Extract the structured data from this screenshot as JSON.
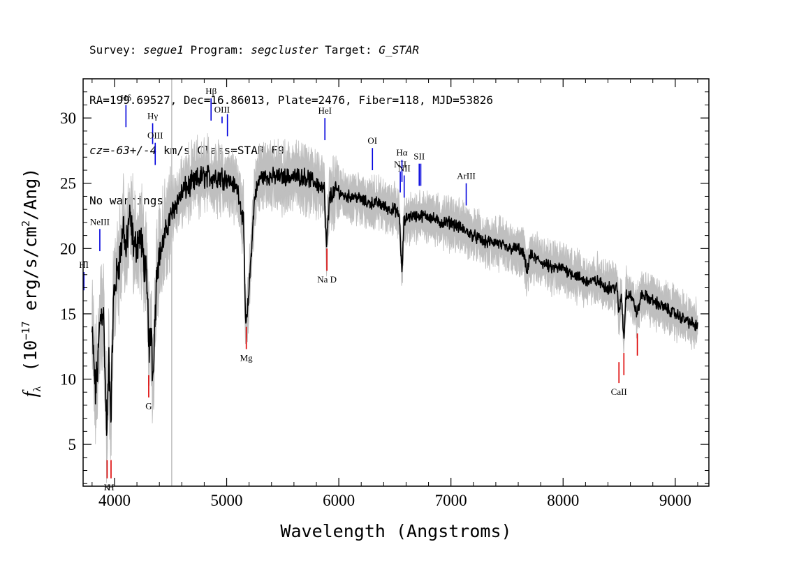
{
  "header": {
    "line1": {
      "survey_label": "Survey: ",
      "survey": "segue1",
      "program_label": " Program: ",
      "program": "segcluster",
      "target_label": " Target: ",
      "target": "G_STAR"
    },
    "line2": "RA=199.69527, Dec=16.86013, Plate=2476, Fiber=118, MJD=53826",
    "line3": {
      "cz": "cz=-63+/-4",
      "rest": " km/s Class=STAR F9"
    },
    "line4": "No warnings."
  },
  "colors": {
    "flux": "#000000",
    "error_band": "#bfbfbf",
    "emission_marker": "#0000dd",
    "absorption_marker": "#dd0000",
    "marker_vertical": "#bfbfbf"
  },
  "chart_data": {
    "type": "line",
    "xlabel": "Wavelength (Angstroms)",
    "ylabel": "f_λ (10^-17 erg/s/cm^2/Ang)",
    "xlim": [
      3720,
      9300
    ],
    "ylim": [
      1.8,
      33
    ],
    "x_ticks": [
      4000,
      5000,
      6000,
      7000,
      8000,
      9000
    ],
    "y_ticks": [
      5,
      10,
      15,
      20,
      25,
      30
    ],
    "marker_wavelength": 4510,
    "series": [
      {
        "x": [
          3800,
          3830,
          3850,
          3870,
          3900,
          3920,
          3933,
          3950,
          3968,
          3990,
          4020,
          4060,
          4080,
          4102,
          4130,
          4180,
          4230,
          4280,
          4300,
          4310,
          4330,
          4340,
          4380,
          4420,
          4480,
          4550,
          4620,
          4700,
          4780,
          4860,
          4920,
          4980,
          5050,
          5100,
          5150,
          5170,
          5185,
          5200,
          5250,
          5300,
          5400,
          5500,
          5600,
          5700,
          5800,
          5870,
          5890,
          5896,
          5920,
          5980,
          6050,
          6150,
          6250,
          6350,
          6450,
          6500,
          6540,
          6563,
          6580,
          6620,
          6700,
          6800,
          6900,
          7000,
          7100,
          7200,
          7300,
          7400,
          7500,
          7600,
          7650,
          7680,
          7700,
          7800,
          7900,
          8000,
          8100,
          8200,
          8300,
          8400,
          8480,
          8498,
          8520,
          8542,
          8560,
          8600,
          8662,
          8700,
          8800,
          8900,
          9000,
          9100,
          9200
        ],
        "y": [
          13.5,
          9,
          11,
          14.5,
          15.5,
          9,
          5.5,
          12,
          7,
          16,
          18,
          20,
          22,
          19.5,
          22.5,
          20,
          21,
          18,
          15,
          12,
          14,
          10,
          19,
          20,
          22,
          23.5,
          24.5,
          25,
          25.5,
          25.5,
          25.5,
          25.5,
          25,
          24.5,
          22,
          14,
          15,
          17,
          24,
          25.5,
          25.5,
          25.5,
          25.5,
          25.5,
          25,
          24.5,
          20,
          21,
          24,
          24.5,
          24,
          24,
          23.5,
          23.5,
          23,
          23,
          22.5,
          18,
          22,
          22.5,
          22.5,
          22.5,
          22,
          22,
          21.5,
          21,
          20.5,
          20.5,
          20,
          20,
          19.5,
          18,
          19.5,
          19,
          18.5,
          18.5,
          18,
          17.5,
          17.5,
          17,
          17,
          15,
          16.5,
          13,
          16.5,
          16.5,
          15,
          16.5,
          16,
          15.5,
          15,
          14.5,
          14
        ]
      }
    ],
    "emission_lines": [
      {
        "label": "HI",
        "wavelength": 3727,
        "y_top": 18.2,
        "y_bottom": 16.8
      },
      {
        "label": "NeIII",
        "wavelength": 3869,
        "y_top": 21.5,
        "y_bottom": 19.8
      },
      {
        "label": "Hδ",
        "wavelength": 4102,
        "y_top": 31.0,
        "y_bottom": 29.3
      },
      {
        "label": "Hγ",
        "wavelength": 4340,
        "y_top": 29.6,
        "y_bottom": 28.0
      },
      {
        "label": "OIII",
        "wavelength": 4363,
        "y_top": 28.1,
        "y_bottom": 26.4
      },
      {
        "label": "Hβ",
        "wavelength": 4861,
        "y_top": 31.5,
        "y_bottom": 29.8
      },
      {
        "label": "OIII",
        "wavelength": 4959,
        "y_top": 30.1,
        "y_bottom": 29.6
      },
      {
        "label": "",
        "wavelength": 5007,
        "y_top": 30.3,
        "y_bottom": 28.6
      },
      {
        "label": "HeI",
        "wavelength": 5876,
        "y_top": 30.0,
        "y_bottom": 28.3
      },
      {
        "label": "OI",
        "wavelength": 6300,
        "y_top": 27.7,
        "y_bottom": 26.0
      },
      {
        "label": "NII",
        "wavelength": 6548,
        "y_top": 25.9,
        "y_bottom": 24.3
      },
      {
        "label": "Hα",
        "wavelength": 6563,
        "y_top": 26.8,
        "y_bottom": 25.1
      },
      {
        "label": "NII",
        "wavelength": 6583,
        "y_top": 25.6,
        "y_bottom": 23.9
      },
      {
        "label": "SII",
        "wavelength": 6717,
        "y_top": 26.5,
        "y_bottom": 24.8
      },
      {
        "label": "",
        "wavelength": 6731,
        "y_top": 26.5,
        "y_bottom": 24.8
      },
      {
        "label": "ArIII",
        "wavelength": 7136,
        "y_top": 25.0,
        "y_bottom": 23.3
      }
    ],
    "absorption_lines": [
      {
        "label": "K",
        "wavelength": 3934,
        "y_top": 3.8,
        "y_bottom": 2.4
      },
      {
        "label": "H",
        "wavelength": 3969,
        "y_top": 3.8,
        "y_bottom": 2.4
      },
      {
        "label": "G",
        "wavelength": 4305,
        "y_top": 10.3,
        "y_bottom": 8.6
      },
      {
        "label": "Mg",
        "wavelength": 5175,
        "y_top": 14.0,
        "y_bottom": 12.3
      },
      {
        "label": "Na D",
        "wavelength": 5894,
        "y_top": 20.0,
        "y_bottom": 18.3
      },
      {
        "label": "CaII",
        "wavelength": 8498,
        "y_top": 11.3,
        "y_bottom": 9.7
      },
      {
        "label": "",
        "wavelength": 8542,
        "y_top": 12.0,
        "y_bottom": 10.3
      },
      {
        "label": "",
        "wavelength": 8662,
        "y_top": 13.5,
        "y_bottom": 11.8
      }
    ]
  }
}
